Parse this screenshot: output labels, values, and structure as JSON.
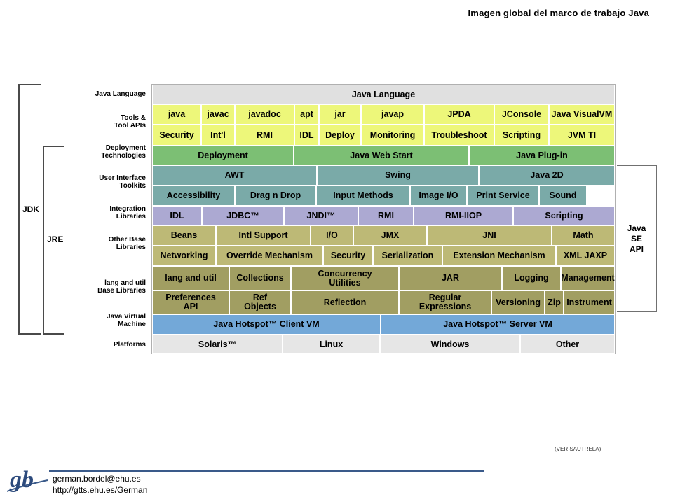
{
  "title": "Imagen global del marco de trabajo Java",
  "colors": {
    "gray": "#e0e0e0",
    "yellow": "#edf77a",
    "green": "#7cbf74",
    "teal": "#7aaaa8",
    "purple": "#aca9d2",
    "olive_light": "#bdb976",
    "olive_dark": "#a19e62",
    "blue": "#73a8d8",
    "platform": "#e6e6e6"
  },
  "row_labels": [
    {
      "id": "java-language",
      "lines": [
        "Java Language"
      ]
    },
    {
      "id": "tools",
      "lines": [
        "Tools &",
        "Tool APIs"
      ]
    },
    {
      "id": "deployment",
      "lines": [
        "Deployment",
        "Technologies"
      ]
    },
    {
      "id": "ui-toolkits",
      "lines": [
        "User Interface",
        "Toolkits"
      ]
    },
    {
      "id": "integration",
      "lines": [
        "Integration",
        "Libraries"
      ]
    },
    {
      "id": "other-base",
      "lines": [
        "Other Base",
        "Libraries"
      ]
    },
    {
      "id": "lang-util",
      "lines": [
        "lang and util",
        "Base Libraries"
      ]
    },
    {
      "id": "jvm",
      "lines": [
        "Java Virtual",
        "Machine"
      ]
    },
    {
      "id": "platforms",
      "lines": [
        "Platforms"
      ]
    }
  ],
  "rows": [
    {
      "color": "gray",
      "cells": [
        "Java Language"
      ]
    },
    {
      "color": "yellow",
      "cells": [
        "java",
        "javac",
        "javadoc",
        "apt",
        "jar",
        "javap",
        "JPDA",
        "JConsole",
        "Java VisualVM"
      ]
    },
    {
      "color": "yellow",
      "cells": [
        "Security",
        "Int'l",
        "RMI",
        "IDL",
        "Deploy",
        "Monitoring",
        "Troubleshoot",
        "Scripting",
        "JVM TI"
      ]
    },
    {
      "color": "green",
      "cells": [
        "Deployment",
        "Java Web Start",
        "Java Plug-in"
      ]
    },
    {
      "color": "teal",
      "cells": [
        "AWT",
        "Swing",
        "Java 2D"
      ]
    },
    {
      "color": "teal",
      "cells": [
        "Accessibility",
        "Drag n Drop",
        "Input Methods",
        "Image I/O",
        "Print Service",
        "Sound"
      ]
    },
    {
      "color": "purple",
      "cells": [
        "IDL",
        "JDBC™",
        "JNDI™",
        "RMI",
        "RMI-IIOP",
        "Scripting"
      ]
    },
    {
      "color": "olive_light",
      "cells": [
        "Beans",
        "Intl Support",
        "I/O",
        "JMX",
        "JNI",
        "Math"
      ]
    },
    {
      "color": "olive_light",
      "cells": [
        "Networking",
        "Override Mechanism",
        "Security",
        "Serialization",
        "Extension Mechanism",
        "XML JAXP"
      ]
    },
    {
      "color": "olive_dark",
      "cells": [
        "lang and util",
        "Collections",
        "Concurrency\nUtilities",
        "JAR",
        "Logging",
        "Management"
      ]
    },
    {
      "color": "olive_dark",
      "cells": [
        "Preferences\nAPI",
        "Ref\nObjects",
        "Reflection",
        "Regular\nExpressions",
        "Versioning",
        "Zip",
        "Instrument"
      ]
    },
    {
      "color": "blue",
      "cells": [
        "Java Hotspot™ Client VM",
        "Java Hotspot™ Server VM"
      ]
    },
    {
      "color": "platform",
      "cells": [
        "Solaris™",
        "Linux",
        "Windows",
        "Other"
      ]
    }
  ],
  "brackets": {
    "jdk": "JDK",
    "jre": "JRE",
    "api": "Java\nSE\nAPI"
  },
  "note": "(VER SAUTRELA)",
  "footer": {
    "email": "german.bordel@ehu.es",
    "url": "http://gtts.ehu.es/German",
    "logo_text": "gb"
  }
}
